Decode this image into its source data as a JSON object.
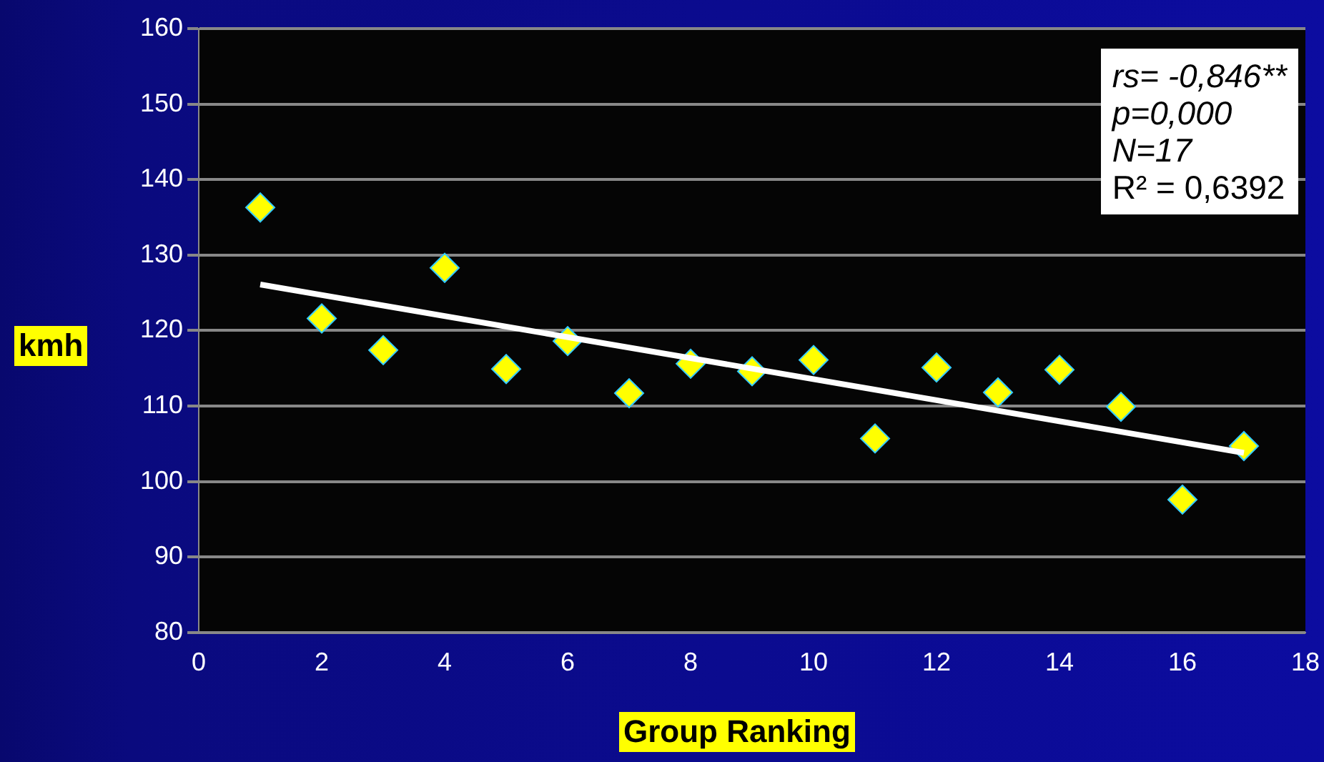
{
  "chart_data": {
    "type": "scatter",
    "xlabel": "Group Ranking",
    "ylabel": "kmh",
    "annotations": [
      "rs= -0,846**",
      "p=0,000",
      "N=17",
      "R² = 0,6392"
    ],
    "xlim": [
      0,
      18
    ],
    "xticks": [
      0,
      2,
      4,
      6,
      8,
      10,
      12,
      14,
      16,
      18
    ],
    "ylim": [
      80,
      160
    ],
    "yticks": [
      80,
      90,
      100,
      110,
      120,
      130,
      140,
      150,
      160
    ],
    "grid": "y",
    "legend": false,
    "marker": "diamond",
    "series": [
      {
        "color": "#ffff00",
        "x": [
          1,
          2,
          3,
          4,
          5,
          6,
          7,
          8,
          9,
          10,
          11,
          12,
          13,
          14,
          15,
          16,
          17
        ],
        "values": [
          136.3,
          121.6,
          117.4,
          128.3,
          114.9,
          118.6,
          111.7,
          115.6,
          114.6,
          116.1,
          105.7,
          115.1,
          111.8,
          114.8,
          109.9,
          97.6,
          104.7
        ]
      },
      {
        "type": "line",
        "color": "#ffffff",
        "marker": "none",
        "x": [
          1,
          17
        ],
        "values": [
          126.1,
          103.8
        ]
      }
    ]
  }
}
